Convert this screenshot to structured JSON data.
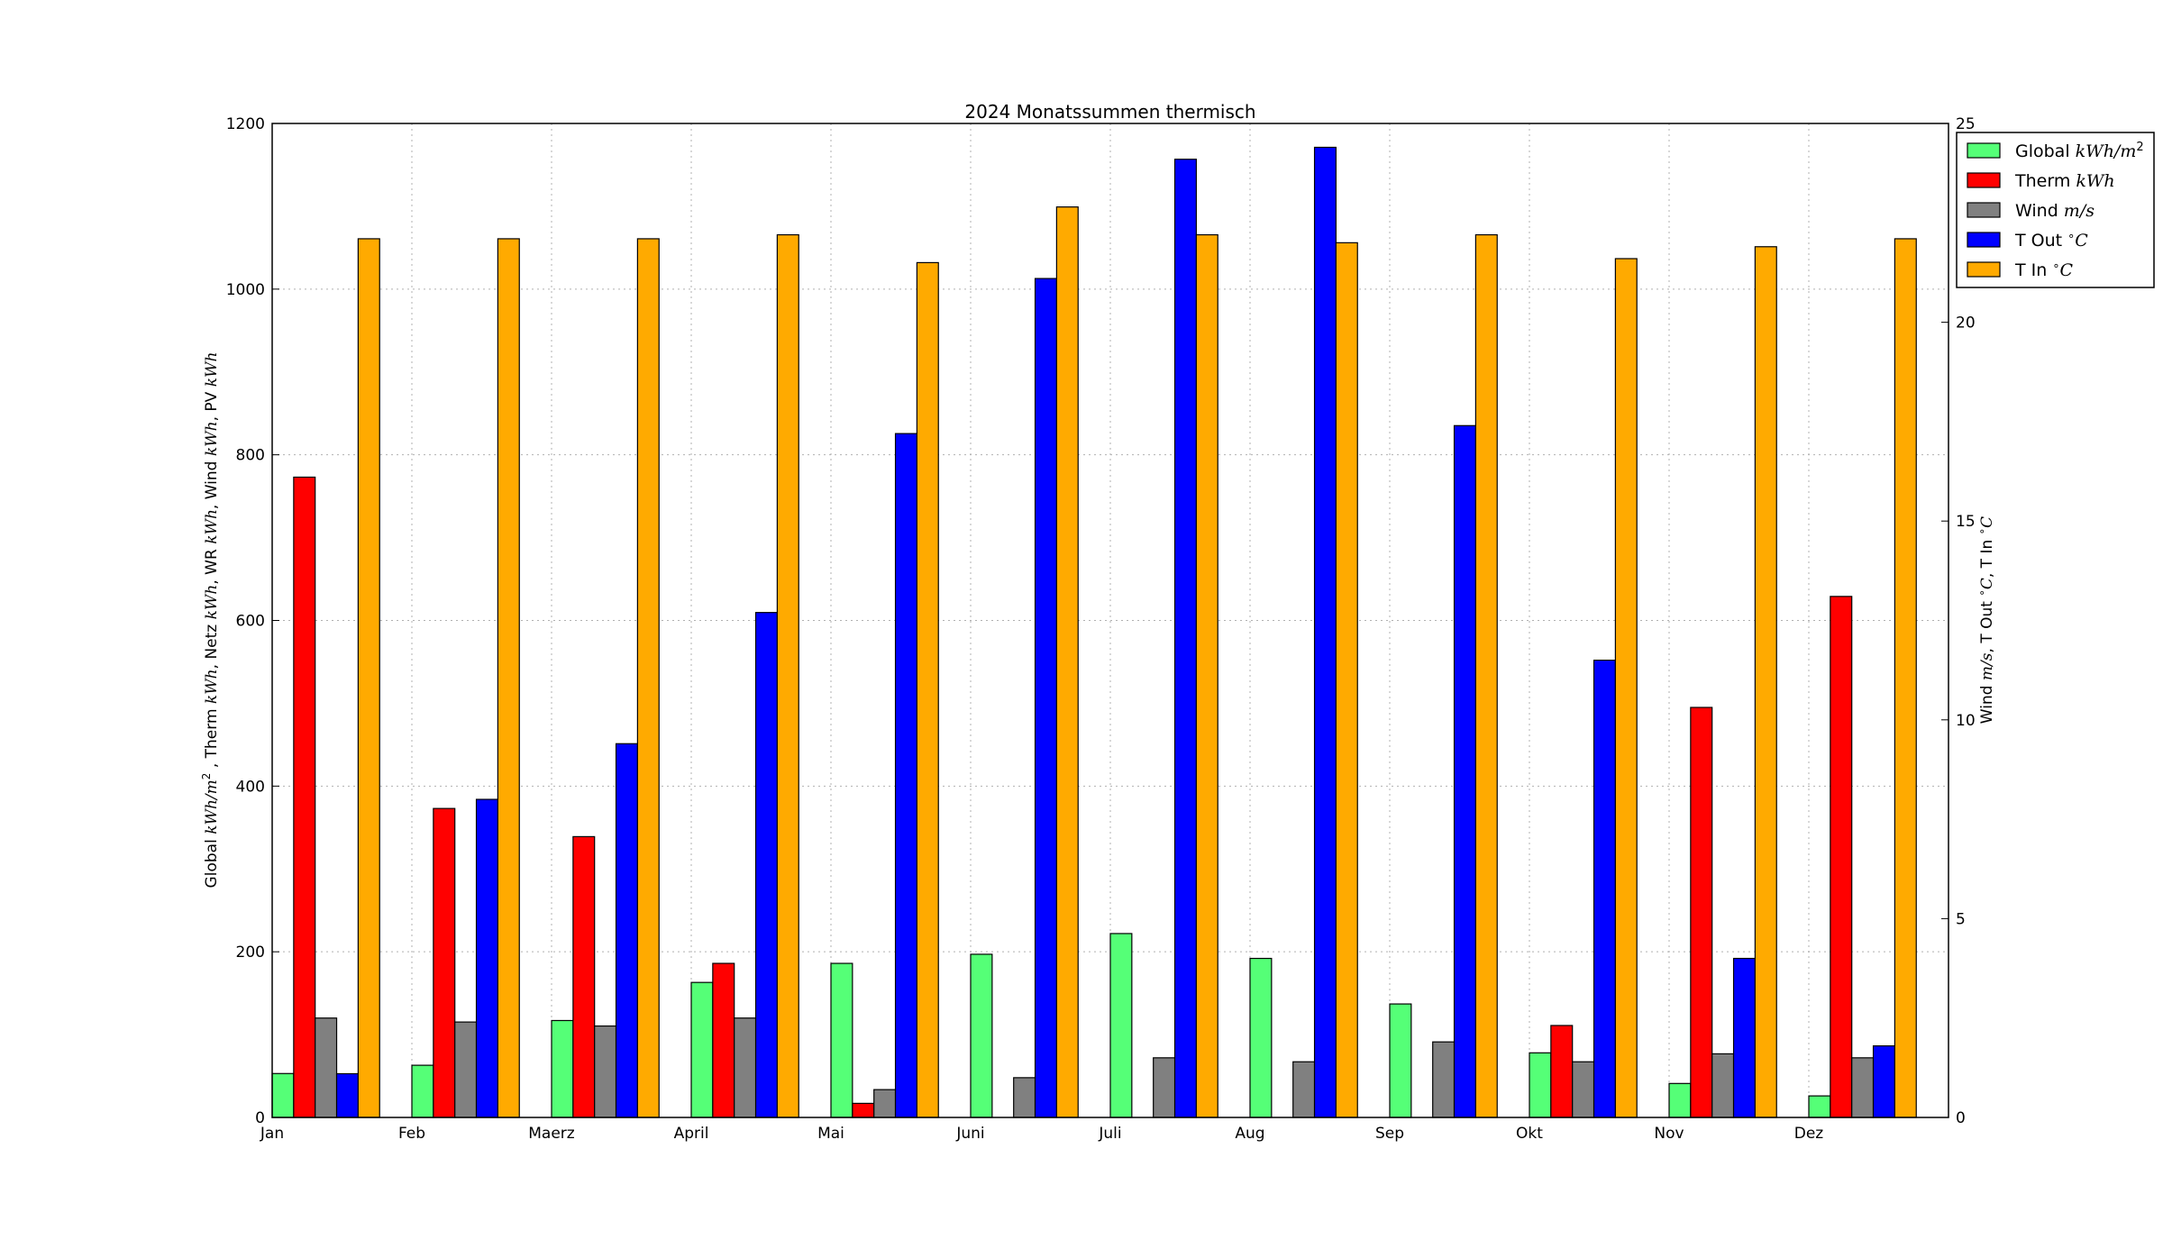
{
  "chart_data": {
    "type": "bar",
    "title": "2024 Monatssummen thermisch",
    "categories": [
      "Jan",
      "Feb",
      "Maerz",
      "April",
      "Mai",
      "Juni",
      "Juli",
      "Aug",
      "Sep",
      "Okt",
      "Nov",
      "Dez"
    ],
    "y_left": {
      "label": "Global kWh/m², Therm kWh, Netz kWh, WR kWh, Wind kWh, PV kWh",
      "ylim": [
        0,
        1200
      ],
      "ticks": [
        0,
        200,
        400,
        600,
        800,
        1000,
        1200
      ]
    },
    "y_right": {
      "label": "Wind m/s, T Out °C, T In °C",
      "ylim": [
        0,
        25
      ],
      "ticks": [
        0,
        5,
        10,
        15,
        20,
        25
      ]
    },
    "grid": true,
    "legend_position": "upper-right-outside",
    "series": [
      {
        "name": "Global",
        "unit": "kWh/m²",
        "axis": "left",
        "color": "#55ff77",
        "values": [
          53,
          63,
          117,
          163,
          186,
          197,
          222,
          192,
          137,
          78,
          41,
          26
        ]
      },
      {
        "name": "Therm",
        "unit": "kWh",
        "axis": "left",
        "color": "#ff0000",
        "values": [
          773,
          373,
          339,
          186,
          17,
          0,
          0,
          0,
          0,
          111,
          495,
          629
        ]
      },
      {
        "name": "Wind",
        "unit": "m/s",
        "axis": "right",
        "color": "#808080",
        "values": [
          2.5,
          2.4,
          2.3,
          2.5,
          0.7,
          1.0,
          1.5,
          1.4,
          1.9,
          1.4,
          1.6,
          1.5
        ]
      },
      {
        "name": "T Out",
        "unit": "°C",
        "axis": "right",
        "color": "#0000ff",
        "values": [
          1.1,
          8.0,
          9.4,
          12.7,
          17.2,
          21.1,
          24.1,
          24.4,
          17.4,
          11.5,
          4.0,
          1.8
        ]
      },
      {
        "name": "T In",
        "unit": "°C",
        "axis": "right",
        "color": "#ffaa00",
        "values": [
          22.1,
          22.1,
          22.1,
          22.2,
          21.5,
          22.9,
          22.2,
          22.0,
          22.2,
          21.6,
          21.9,
          22.1
        ]
      }
    ]
  }
}
